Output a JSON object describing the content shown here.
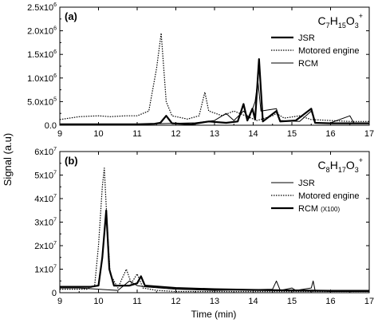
{
  "figure": {
    "xlabel": "Time (min)",
    "ylabel": "Signal (a.u)"
  },
  "chart_data": [
    {
      "type": "line",
      "panel_label": "(a)",
      "formula": {
        "base": "C",
        "c": "7",
        "h": "15",
        "o": "3",
        "charge": "+"
      },
      "xlim": [
        9,
        17
      ],
      "ylim": [
        0,
        2500000
      ],
      "x_ticks": [
        "9",
        "10",
        "11",
        "12",
        "13",
        "14",
        "15",
        "16",
        "17"
      ],
      "y_ticks": [
        {
          "value": 0,
          "label": "0.0",
          "mantissa": "0.0",
          "exp": ""
        },
        {
          "value": 500000,
          "label": "5.0x10^5",
          "mantissa": "5.0x10",
          "exp": "5"
        },
        {
          "value": 1000000,
          "label": "1.0x10^6",
          "mantissa": "1.0x10",
          "exp": "6"
        },
        {
          "value": 1500000,
          "label": "1.5x10^6",
          "mantissa": "1.5x10",
          "exp": "6"
        },
        {
          "value": 2000000,
          "label": "2.0x10^6",
          "mantissa": "2.0x10",
          "exp": "6"
        },
        {
          "value": 2500000,
          "label": "2.5x10^6",
          "mantissa": "2.5x10",
          "exp": "6"
        }
      ],
      "legend_position": "top-right",
      "series": [
        {
          "name": "JSR",
          "style": "thick",
          "points": [
            [
              9,
              0.02
            ],
            [
              10,
              0.02
            ],
            [
              11,
              0.02
            ],
            [
              11.45,
              0.03
            ],
            [
              11.6,
              0.05
            ],
            [
              11.75,
              0.2
            ],
            [
              11.9,
              0.04
            ],
            [
              12.4,
              0.02
            ],
            [
              12.85,
              0.08
            ],
            [
              13.3,
              0.05
            ],
            [
              13.6,
              0.08
            ],
            [
              13.75,
              0.45
            ],
            [
              13.85,
              0.1
            ],
            [
              13.98,
              0.35
            ],
            [
              14.05,
              0.12
            ],
            [
              14.15,
              1.4
            ],
            [
              14.25,
              0.08
            ],
            [
              14.6,
              0.3
            ],
            [
              14.7,
              0.08
            ],
            [
              15.1,
              0.1
            ],
            [
              15.5,
              0.35
            ],
            [
              15.6,
              0.05
            ],
            [
              16,
              0.04
            ],
            [
              17,
              0.04
            ]
          ]
        },
        {
          "name": "Motored engine",
          "style": "dotted",
          "points": [
            [
              9,
              0.12
            ],
            [
              9.5,
              0.18
            ],
            [
              10,
              0.2
            ],
            [
              10.3,
              0.18
            ],
            [
              10.7,
              0.2
            ],
            [
              11,
              0.2
            ],
            [
              11.3,
              0.3
            ],
            [
              11.5,
              1.2
            ],
            [
              11.62,
              1.95
            ],
            [
              11.75,
              0.5
            ],
            [
              11.9,
              0.2
            ],
            [
              12.3,
              0.13
            ],
            [
              12.6,
              0.2
            ],
            [
              12.75,
              0.7
            ],
            [
              12.85,
              0.3
            ],
            [
              13.2,
              0.2
            ],
            [
              13.5,
              0.3
            ],
            [
              13.8,
              0.2
            ],
            [
              14.1,
              0.1
            ],
            [
              14.5,
              0.2
            ],
            [
              14.6,
              0.25
            ],
            [
              14.8,
              0.15
            ],
            [
              15.2,
              0.2
            ],
            [
              15.5,
              0.12
            ],
            [
              16,
              0.1
            ],
            [
              16.5,
              0.08
            ],
            [
              17,
              0.08
            ]
          ]
        },
        {
          "name": "RCM",
          "style": "thin",
          "points": [
            [
              9,
              0.02
            ],
            [
              11,
              0.02
            ],
            [
              12.5,
              0.05
            ],
            [
              13,
              0.1
            ],
            [
              13.3,
              0.25
            ],
            [
              13.5,
              0.1
            ],
            [
              13.75,
              0.3
            ],
            [
              13.9,
              0.15
            ],
            [
              14.05,
              0.5
            ],
            [
              14.12,
              0.95
            ],
            [
              14.2,
              0.3
            ],
            [
              14.6,
              0.35
            ],
            [
              14.7,
              0.1
            ],
            [
              15.2,
              0.08
            ],
            [
              15.5,
              0.3
            ],
            [
              15.6,
              0.05
            ],
            [
              16,
              0.05
            ],
            [
              16.5,
              0.2
            ],
            [
              16.6,
              0.05
            ],
            [
              17,
              0.05
            ]
          ]
        }
      ]
    },
    {
      "type": "line",
      "panel_label": "(b)",
      "formula": {
        "base": "C",
        "c": "8",
        "h": "17",
        "o": "3",
        "charge": "+"
      },
      "xlim": [
        9,
        17
      ],
      "ylim": [
        0,
        60000000
      ],
      "x_ticks": [
        "9",
        "10",
        "11",
        "12",
        "13",
        "14",
        "15",
        "16",
        "17"
      ],
      "y_ticks": [
        {
          "value": 0,
          "label": "0",
          "mantissa": "0",
          "exp": ""
        },
        {
          "value": 10000000,
          "label": "1x10^7",
          "mantissa": "1x10",
          "exp": "7"
        },
        {
          "value": 20000000,
          "label": "2x10^7",
          "mantissa": "2x10",
          "exp": "7"
        },
        {
          "value": 30000000,
          "label": "3x10^7",
          "mantissa": "3x10",
          "exp": "7"
        },
        {
          "value": 40000000,
          "label": "4x10^7",
          "mantissa": "4x10",
          "exp": "7"
        },
        {
          "value": 50000000,
          "label": "5x10^7",
          "mantissa": "5x10",
          "exp": "7"
        },
        {
          "value": 60000000,
          "label": "6x10^7",
          "mantissa": "6x10",
          "exp": "7"
        }
      ],
      "legend_position": "top-right",
      "series": [
        {
          "name": "JSR",
          "style": "thin",
          "points": [
            [
              9,
              0.2
            ],
            [
              9.5,
              0.2
            ],
            [
              10,
              0.15
            ],
            [
              10.5,
              0.1
            ],
            [
              10.8,
              0.5
            ],
            [
              11,
              0.3
            ],
            [
              11.2,
              0.25
            ],
            [
              12,
              0.15
            ],
            [
              13,
              0.1
            ],
            [
              14.5,
              0.15
            ],
            [
              14.6,
              0.5
            ],
            [
              14.7,
              0.1
            ],
            [
              15,
              0.2
            ],
            [
              15.1,
              0.1
            ],
            [
              15.5,
              0.2
            ],
            [
              15.55,
              0.5
            ],
            [
              15.6,
              0.1
            ],
            [
              16,
              0.05
            ],
            [
              17,
              0.05
            ]
          ]
        },
        {
          "name": "Motored engine",
          "style": "dotted",
          "points": [
            [
              9,
              0.15
            ],
            [
              9.7,
              0.15
            ],
            [
              9.9,
              0.3
            ],
            [
              10.0,
              2.0
            ],
            [
              10.1,
              4.5
            ],
            [
              10.15,
              5.3
            ],
            [
              10.22,
              3.0
            ],
            [
              10.3,
              0.8
            ],
            [
              10.5,
              0.2
            ],
            [
              10.72,
              1.0
            ],
            [
              10.85,
              0.4
            ],
            [
              11.0,
              0.8
            ],
            [
              11.15,
              0.2
            ],
            [
              11.5,
              0.1
            ],
            [
              12,
              0.05
            ],
            [
              13,
              0.05
            ],
            [
              17,
              0.05
            ]
          ]
        },
        {
          "name": "RCM",
          "label_main": "RCM",
          "label_suffix": "(X100)",
          "style": "thick",
          "points": [
            [
              9,
              0.25
            ],
            [
              9.8,
              0.25
            ],
            [
              10.0,
              0.3
            ],
            [
              10.1,
              1.5
            ],
            [
              10.2,
              3.5
            ],
            [
              10.28,
              1.0
            ],
            [
              10.4,
              0.3
            ],
            [
              10.8,
              0.3
            ],
            [
              11.0,
              0.4
            ],
            [
              11.1,
              0.7
            ],
            [
              11.2,
              0.3
            ],
            [
              12,
              0.2
            ],
            [
              13,
              0.15
            ],
            [
              14,
              0.12
            ],
            [
              15,
              0.1
            ],
            [
              16,
              0.08
            ],
            [
              17,
              0.08
            ]
          ]
        }
      ]
    }
  ]
}
